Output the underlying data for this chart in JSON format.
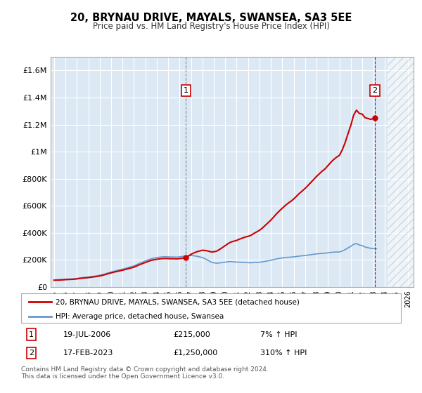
{
  "title": "20, BRYNAU DRIVE, MAYALS, SWANSEA, SA3 5EE",
  "subtitle": "Price paid vs. HM Land Registry's House Price Index (HPI)",
  "background_color": "#dce9f5",
  "hpi_line_color": "#6699cc",
  "price_line_color": "#cc0000",
  "ylim": [
    0,
    1700000
  ],
  "yticks": [
    0,
    200000,
    400000,
    600000,
    800000,
    1000000,
    1200000,
    1400000,
    1600000
  ],
  "ytick_labels": [
    "£0",
    "£200K",
    "£400K",
    "£600K",
    "£800K",
    "£1M",
    "£1.2M",
    "£1.4M",
    "£1.6M"
  ],
  "x_start_year": 1995,
  "xtick_years": [
    1995,
    1996,
    1997,
    1998,
    1999,
    2000,
    2001,
    2002,
    2003,
    2004,
    2005,
    2006,
    2007,
    2008,
    2009,
    2010,
    2011,
    2012,
    2013,
    2014,
    2015,
    2016,
    2017,
    2018,
    2019,
    2020,
    2021,
    2022,
    2023,
    2024,
    2025,
    2026
  ],
  "hpi_years": [
    1995.0,
    1995.25,
    1995.5,
    1995.75,
    1996.0,
    1996.25,
    1996.5,
    1996.75,
    1997.0,
    1997.25,
    1997.5,
    1997.75,
    1998.0,
    1998.25,
    1998.5,
    1998.75,
    1999.0,
    1999.25,
    1999.5,
    1999.75,
    2000.0,
    2000.25,
    2000.5,
    2000.75,
    2001.0,
    2001.25,
    2001.5,
    2001.75,
    2002.0,
    2002.25,
    2002.5,
    2002.75,
    2003.0,
    2003.25,
    2003.5,
    2003.75,
    2004.0,
    2004.25,
    2004.5,
    2004.75,
    2005.0,
    2005.25,
    2005.5,
    2005.75,
    2006.0,
    2006.25,
    2006.5,
    2006.75,
    2007.0,
    2007.25,
    2007.5,
    2007.75,
    2008.0,
    2008.25,
    2008.5,
    2008.75,
    2009.0,
    2009.25,
    2009.5,
    2009.75,
    2010.0,
    2010.25,
    2010.5,
    2010.75,
    2011.0,
    2011.25,
    2011.5,
    2011.75,
    2012.0,
    2012.25,
    2012.5,
    2012.75,
    2013.0,
    2013.25,
    2013.5,
    2013.75,
    2014.0,
    2014.25,
    2014.5,
    2014.75,
    2015.0,
    2015.25,
    2015.5,
    2015.75,
    2016.0,
    2016.25,
    2016.5,
    2016.75,
    2017.0,
    2017.25,
    2017.5,
    2017.75,
    2018.0,
    2018.25,
    2018.5,
    2018.75,
    2019.0,
    2019.25,
    2019.5,
    2019.75,
    2020.0,
    2020.25,
    2020.5,
    2020.75,
    2021.0,
    2021.25,
    2021.5,
    2021.75,
    2022.0,
    2022.25,
    2022.5,
    2022.75,
    2023.0,
    2023.25,
    2023.5,
    2023.75,
    2024.0,
    2024.25
  ],
  "hpi_values": [
    52000,
    53000,
    54000,
    55000,
    57000,
    58000,
    59000,
    60000,
    63000,
    66000,
    69000,
    71000,
    73000,
    76000,
    79000,
    82000,
    86000,
    91000,
    97000,
    104000,
    110000,
    116000,
    121000,
    126000,
    131000,
    137000,
    143000,
    149000,
    155000,
    165000,
    175000,
    183000,
    192000,
    200000,
    208000,
    213000,
    217000,
    220000,
    222000,
    223000,
    222000,
    221000,
    221000,
    220000,
    222000,
    225000,
    228000,
    230000,
    232000,
    230000,
    227000,
    222000,
    217000,
    207000,
    196000,
    184000,
    178000,
    175000,
    177000,
    180000,
    183000,
    186000,
    187000,
    185000,
    183000,
    183000,
    182000,
    181000,
    179000,
    178000,
    180000,
    181000,
    182000,
    185000,
    189000,
    193000,
    197000,
    202000,
    207000,
    211000,
    214000,
    217000,
    219000,
    220000,
    222000,
    225000,
    228000,
    230000,
    232000,
    235000,
    238000,
    241000,
    244000,
    246000,
    248000,
    249000,
    252000,
    255000,
    257000,
    258000,
    258000,
    265000,
    275000,
    288000,
    300000,
    315000,
    320000,
    310000,
    305000,
    295000,
    290000,
    285000,
    283000,
    282000
  ],
  "sale1_year": 2006.54,
  "sale1_price": 215000,
  "sale2_year": 2023.12,
  "sale2_price": 1250000,
  "sale1_label": "1",
  "sale2_label": "2",
  "sale1_date": "19-JUL-2006",
  "sale1_price_text": "£215,000",
  "sale1_hpi_text": "7% ↑ HPI",
  "sale2_date": "17-FEB-2023",
  "sale2_price_text": "£1,250,000",
  "sale2_hpi_text": "310% ↑ HPI",
  "legend_label1": "20, BRYNAU DRIVE, MAYALS, SWANSEA, SA3 5EE (detached house)",
  "legend_label2": "HPI: Average price, detached house, Swansea",
  "footer_text": "Contains HM Land Registry data © Crown copyright and database right 2024.\nThis data is licensed under the Open Government Licence v3.0.",
  "future_hatch_start": 2024.25,
  "future_hatch_end": 2026.5
}
